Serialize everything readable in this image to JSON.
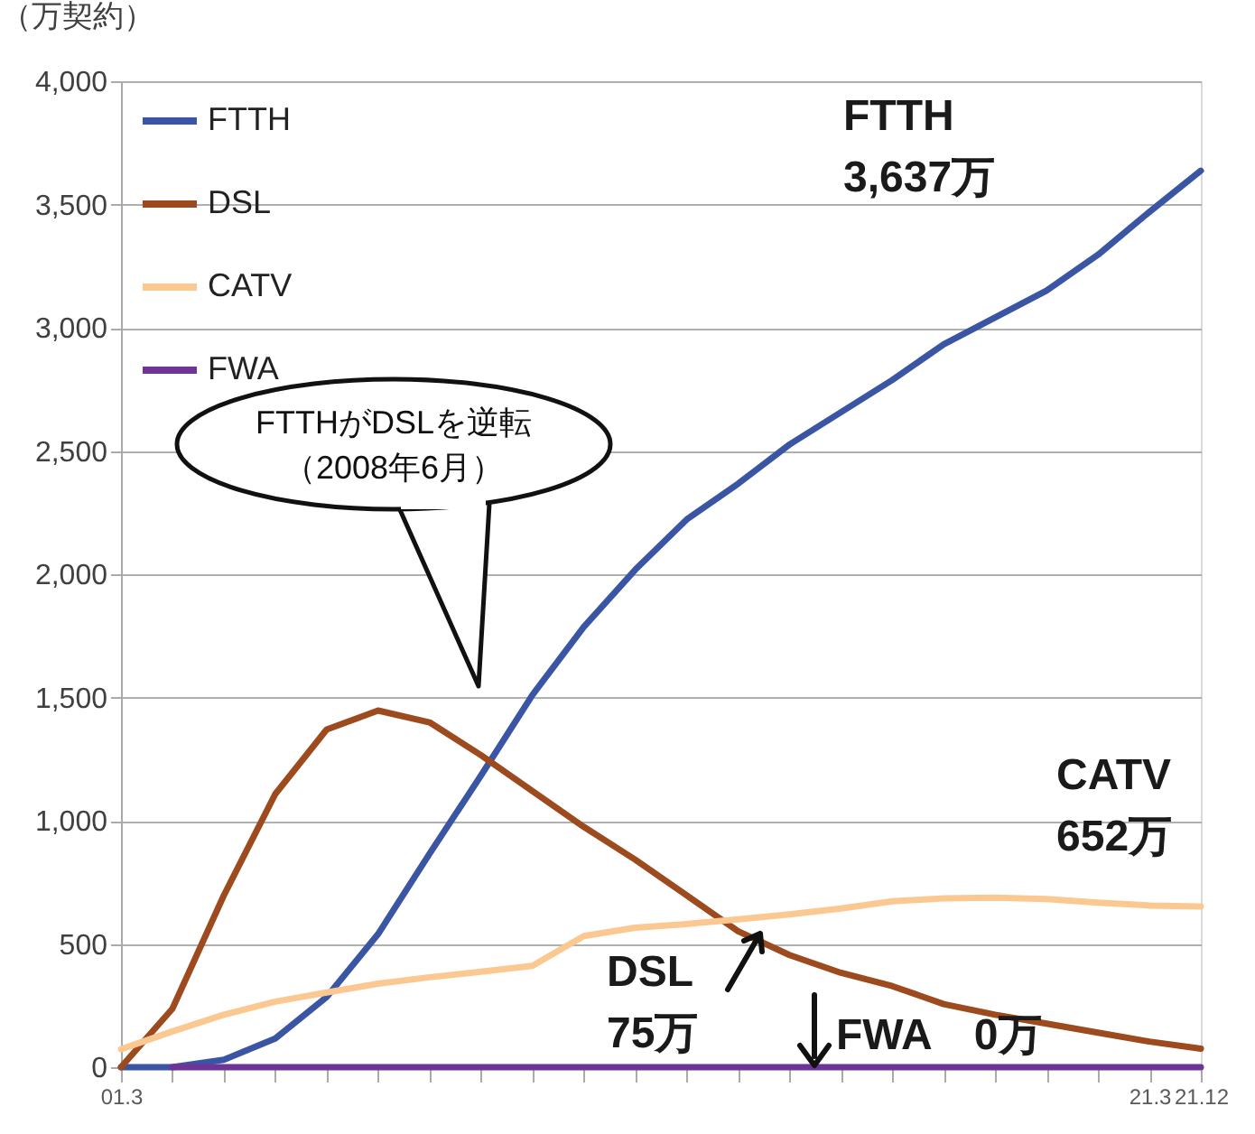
{
  "chart_data": {
    "type": "line",
    "ylabel": "（万契約）",
    "categories": [
      "01.3",
      null,
      null,
      null,
      null,
      null,
      null,
      null,
      null,
      null,
      null,
      null,
      null,
      null,
      null,
      null,
      null,
      null,
      null,
      null,
      "21.3",
      "21.12"
    ],
    "series": [
      {
        "name": "FTTH",
        "color": "#3a55a4",
        "values": [
          0,
          0,
          30,
          116,
          285,
          540,
          866,
          1183,
          1510,
          1786,
          2018,
          2222,
          2367,
          2526,
          2657,
          2788,
          2933,
          3042,
          3151,
          3296,
          3470,
          3637
        ]
      },
      {
        "name": "DSL",
        "color": "#9c4a1e",
        "values": [
          0,
          237,
          697,
          1108,
          1370,
          1447,
          1399,
          1266,
          1120,
          975,
          842,
          697,
          552,
          455,
          383,
          329,
          256,
          213,
          177,
          140,
          104,
          75
        ]
      },
      {
        "name": "CATV",
        "color": "#fcc891",
        "values": [
          73,
          145,
          213,
          266,
          303,
          339,
          365,
          387,
          411,
          532,
          566,
          581,
          600,
          620,
          644,
          673,
          685,
          688,
          682,
          668,
          656,
          652
        ]
      },
      {
        "name": "FWA",
        "color": "#6f3596",
        "values": [
          null,
          0,
          0,
          0,
          0,
          0,
          0,
          0,
          0,
          0,
          0,
          0,
          0,
          0,
          0,
          0,
          0,
          0,
          0,
          0,
          0,
          0
        ]
      }
    ],
    "ylim": [
      0,
      4000
    ],
    "yticks": [
      0,
      500,
      {
        "value": 1000,
        "label": "1,000"
      },
      {
        "value": 1500,
        "label": "1,500"
      },
      {
        "value": 2000,
        "label": "2,000"
      },
      {
        "value": 2500,
        "label": "2,500"
      },
      {
        "value": 3000,
        "label": "3,000"
      },
      {
        "value": 3500,
        "label": "3,500"
      },
      {
        "value": 4000,
        "label": "4,000"
      }
    ],
    "grid": "y",
    "legend": "top left",
    "line_style": "solid",
    "marker": "none",
    "annotations": [
      "FTTHがDSLを逆転",
      "（2008年6月）",
      "FTTH\n3,637万",
      "CATV\n652万",
      "DSL\n75万",
      "FWA　0万"
    ]
  }
}
